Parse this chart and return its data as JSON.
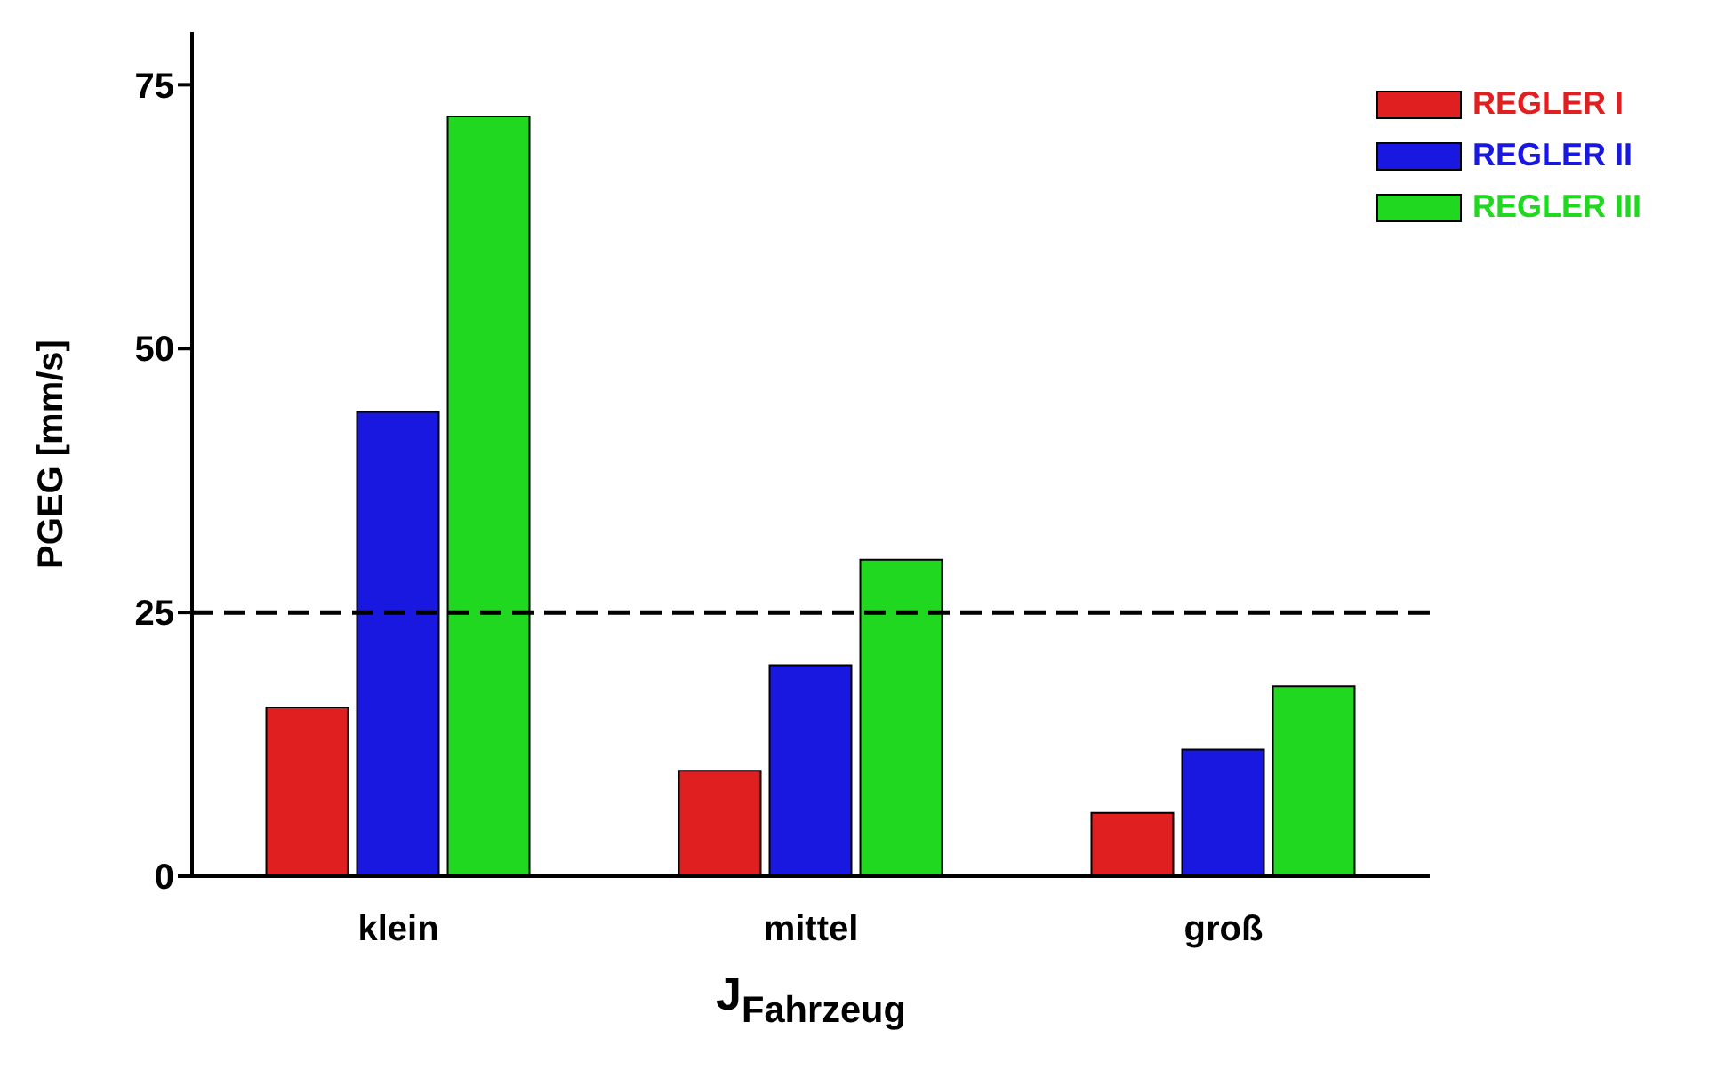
{
  "chart_data": {
    "type": "bar",
    "xlabel": "J$_{Fahrzeug}$",
    "ylabel": "PGEG [mm/s]",
    "categories": [
      "klein",
      "mittel",
      "groß"
    ],
    "series": [
      {
        "name": "REGLER I",
        "color": "#e02020",
        "values": [
          16,
          10,
          6
        ]
      },
      {
        "name": "REGLER II",
        "color": "#1818e0",
        "values": [
          44,
          20,
          12
        ]
      },
      {
        "name": "REGLER III",
        "color": "#20d820",
        "values": [
          72,
          30,
          18
        ]
      }
    ],
    "ylim": [
      0,
      80
    ],
    "yticks": [
      0,
      25,
      50,
      75
    ],
    "grid": false,
    "legend": "top right",
    "ref_lines": [
      {
        "axis": "y",
        "value": 25,
        "color": "#000000",
        "line_style": "dashed"
      }
    ]
  }
}
